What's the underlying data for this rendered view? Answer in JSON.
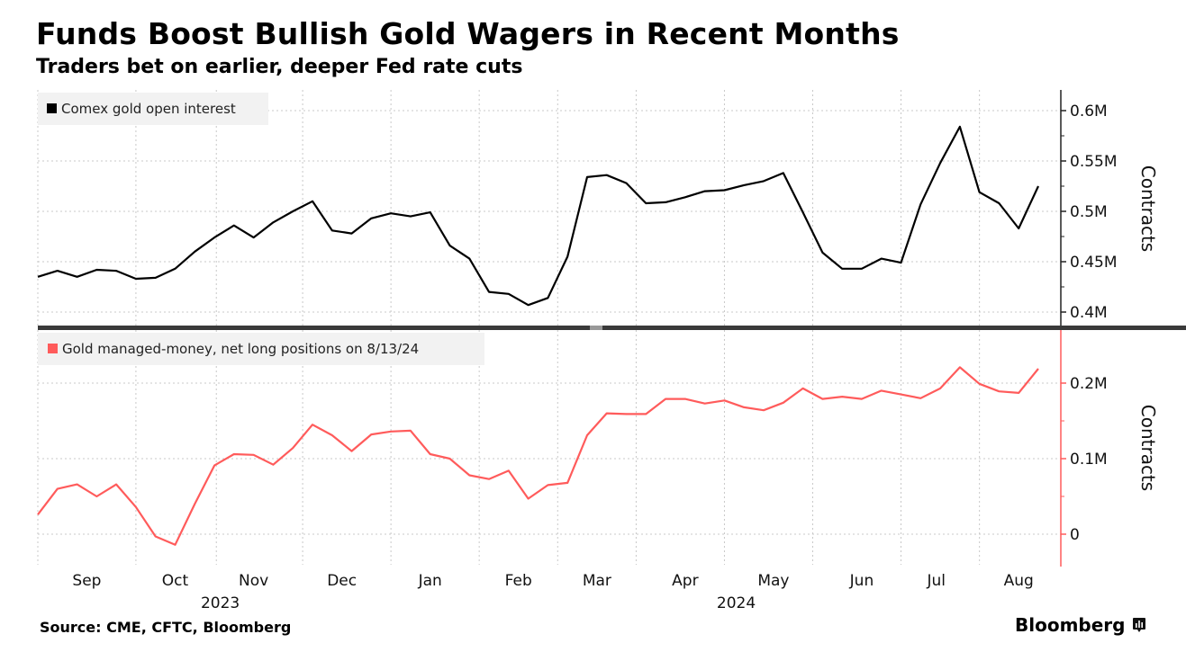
{
  "header": {
    "title": "Funds Boost Bullish Gold Wagers in Recent Months",
    "subtitle": "Traders bet on earlier, deeper Fed rate cuts"
  },
  "footer": {
    "source": "Source: CME, CFTC, Bloomberg",
    "brand": "Bloomberg"
  },
  "chart_data": [
    {
      "type": "line",
      "panel": "top",
      "legend": "Comex gold open interest",
      "legend_placement": "top-left",
      "color": "#000000",
      "ylabel": "Contracts",
      "ylim": [
        0.39,
        0.625
      ],
      "yticks": [
        0.4,
        0.45,
        0.5,
        0.55,
        0.6
      ],
      "ytick_labels": [
        "0.4M",
        "0.45M",
        "0.5M",
        "0.55M",
        "0.6M"
      ],
      "grid": true,
      "unit": "million contracts",
      "values": [
        0.435,
        0.441,
        0.435,
        0.442,
        0.441,
        0.433,
        0.434,
        0.443,
        0.46,
        0.474,
        0.486,
        0.474,
        0.489,
        0.5,
        0.51,
        0.481,
        0.478,
        0.493,
        0.498,
        0.495,
        0.499,
        0.466,
        0.453,
        0.42,
        0.418,
        0.407,
        0.414,
        0.455,
        0.534,
        0.536,
        0.528,
        0.508,
        0.509,
        0.514,
        0.52,
        0.521,
        0.526,
        0.53,
        0.538,
        0.499,
        0.459,
        0.443,
        0.443,
        0.453,
        0.449,
        0.507,
        0.548,
        0.584,
        0.519,
        0.508,
        0.483,
        0.525
      ]
    },
    {
      "type": "line",
      "panel": "bottom",
      "legend": "Gold managed-money, net long positions on 8/13/24",
      "legend_placement": "top-left",
      "color": "#ff5b5b",
      "ylabel": "Contracts",
      "ylim": [
        -0.04,
        0.27
      ],
      "yticks": [
        0,
        0.1,
        0.2
      ],
      "ytick_labels": [
        "0",
        "0.1M",
        "0.2M"
      ],
      "grid": true,
      "unit": "million contracts",
      "values": [
        0.026,
        0.06,
        0.066,
        0.05,
        0.066,
        0.036,
        -0.003,
        -0.014,
        0.04,
        0.091,
        0.106,
        0.105,
        0.092,
        0.114,
        0.145,
        0.131,
        0.11,
        0.132,
        0.136,
        0.137,
        0.106,
        0.1,
        0.078,
        0.073,
        0.084,
        0.047,
        0.065,
        0.068,
        0.131,
        0.16,
        0.159,
        0.159,
        0.179,
        0.179,
        0.173,
        0.177,
        0.168,
        0.164,
        0.174,
        0.193,
        0.179,
        0.182,
        0.179,
        0.19,
        0.185,
        0.18,
        0.193,
        0.221,
        0.199,
        0.189,
        0.187,
        0.219
      ]
    }
  ],
  "x_axis": {
    "months": [
      "Sep",
      "Oct",
      "Nov",
      "Dec",
      "Jan",
      "Feb",
      "Mar",
      "Apr",
      "May",
      "Jun",
      "Jul",
      "Aug"
    ],
    "month_positions": [
      2.5,
      7.0,
      11.0,
      15.5,
      20.0,
      24.5,
      28.5,
      33.0,
      37.5,
      42.0,
      45.8,
      50.0
    ],
    "month_boundaries": [
      5.0,
      9.1,
      13.5,
      18.0,
      22.5,
      26.5,
      30.5,
      35.0,
      39.5,
      44.0,
      48.0
    ],
    "years": [
      {
        "label": "2023",
        "position": 9.3
      },
      {
        "label": "2024",
        "position": 35.6
      }
    ]
  }
}
